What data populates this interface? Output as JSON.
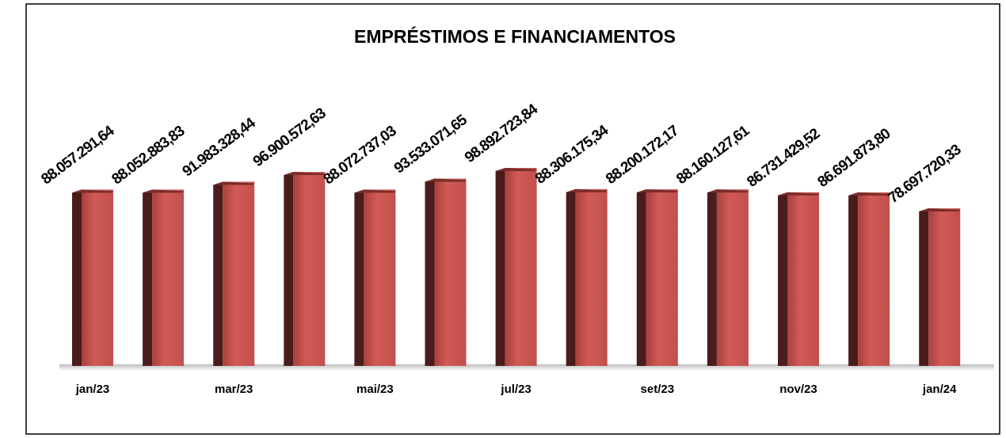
{
  "chart_data": {
    "type": "bar",
    "title": "EMPRÉSTIMOS E FINANCIAMENTOS",
    "categories": [
      "jan/23",
      null,
      "mar/23",
      null,
      "mai/23",
      null,
      "jul/23",
      null,
      "set/23",
      null,
      "nov/23",
      null,
      "jan/24"
    ],
    "values": [
      88057291.64,
      88052883.83,
      91983328.44,
      96900572.63,
      88072737.03,
      93533071.65,
      98892723.84,
      88306175.34,
      88200172.17,
      88160127.61,
      86731429.52,
      86691873.8,
      78697720.33
    ],
    "value_labels": [
      "88.057.291,64",
      "88.052.883,83",
      "91.983.328,44",
      "96.900.572,63",
      "88.072.737,03",
      "93.533.071,65",
      "98.892.723,84",
      "88.306.175,34",
      "88.200.172,17",
      "88.160.127,61",
      "86.731.429,52",
      "86.691.873,80",
      "78.697.720,33"
    ],
    "color": "#c0504d"
  }
}
